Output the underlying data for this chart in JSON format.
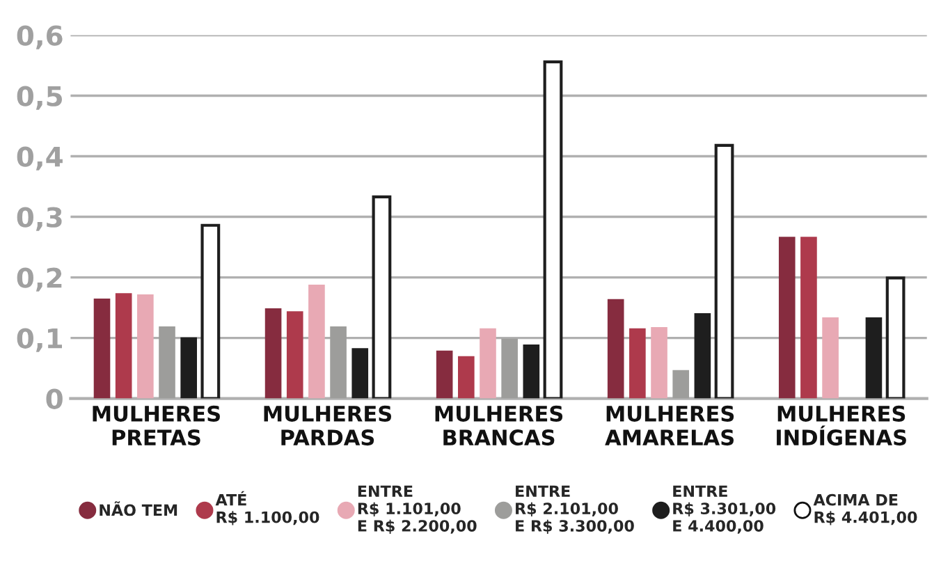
{
  "chart_data": {
    "type": "bar",
    "categories": [
      "MULHERES\nPRETAS",
      "MULHERES\nPARDAS",
      "MULHERES\nBRANCAS",
      "MULHERES\nAMARELAS",
      "MULHERES\nINDÍGENAS"
    ],
    "series": [
      {
        "name": "NÃO TEM",
        "color": "#862c3f",
        "values": [
          0.165,
          0.149,
          0.079,
          0.164,
          0.267
        ]
      },
      {
        "name": "ATÉ\nR$ 1.100,00",
        "color": "#ae3a4c",
        "values": [
          0.174,
          0.144,
          0.07,
          0.116,
          0.267
        ]
      },
      {
        "name": "ENTRE\nR$ 1.101,00\nE R$ 2.200,00",
        "color": "#e8a9b4",
        "values": [
          0.172,
          0.188,
          0.116,
          0.118,
          0.134
        ]
      },
      {
        "name": "ENTRE\nR$ 2.101,00\nE R$ 3.300,00",
        "color": "#9d9d9b",
        "values": [
          0.119,
          0.119,
          0.099,
          0.047,
          null
        ]
      },
      {
        "name": "ENTRE\nR$ 3.301,00\nE 4.400,00",
        "color": "#1e1e1e",
        "values": [
          0.101,
          0.083,
          0.089,
          0.141,
          0.134
        ]
      },
      {
        "name": "ACIMA DE\nR$ 4.401,00",
        "color": "#ffffff",
        "values": [
          0.286,
          0.333,
          0.556,
          0.418,
          0.199
        ]
      }
    ],
    "ylim": [
      0,
      0.6
    ],
    "yticks": [
      {
        "value": 0,
        "label": "0"
      },
      {
        "value": 0.1,
        "label": "0,1"
      },
      {
        "value": 0.2,
        "label": "0,2"
      },
      {
        "value": 0.3,
        "label": "0,3"
      },
      {
        "value": 0.4,
        "label": "0,4"
      },
      {
        "value": 0.5,
        "label": "0,5"
      },
      {
        "value": 0.6,
        "label": "0,6"
      }
    ],
    "grid": "y",
    "legend": "bottom"
  }
}
